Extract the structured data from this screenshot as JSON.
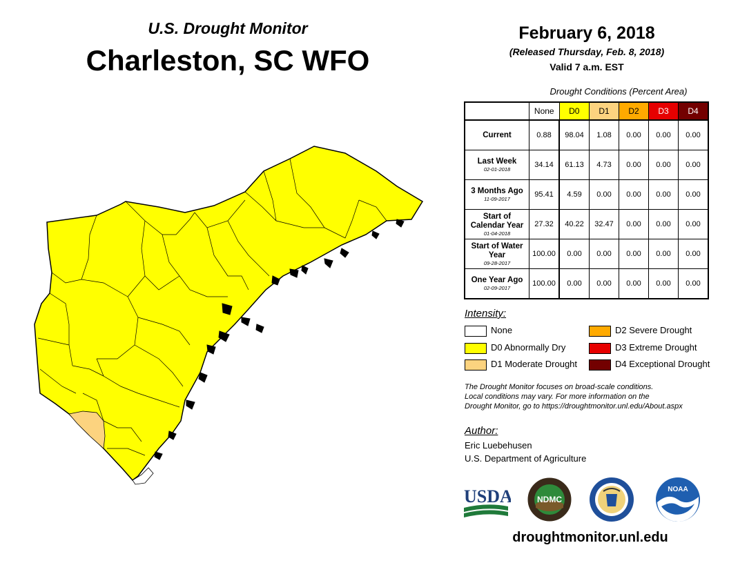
{
  "map": {
    "subtitle": "U.S. Drought Monitor",
    "title": "Charleston, SC WFO"
  },
  "header": {
    "date": "February 6, 2018",
    "released": "(Released Thursday, Feb. 8, 2018)",
    "valid": "Valid 7 a.m. EST"
  },
  "table": {
    "caption": "Drought Conditions (Percent Area)",
    "columns": [
      "None",
      "D0",
      "D1",
      "D2",
      "D3",
      "D4"
    ],
    "column_colors": [
      "#ffffff",
      "#ffff00",
      "#fcd37f",
      "#ffaa00",
      "#e60000",
      "#730000"
    ],
    "rows": [
      {
        "label": "Current",
        "date": "",
        "values": [
          "0.88",
          "98.04",
          "1.08",
          "0.00",
          "0.00",
          "0.00"
        ]
      },
      {
        "label": "Last Week",
        "date": "02-01-2018",
        "values": [
          "34.14",
          "61.13",
          "4.73",
          "0.00",
          "0.00",
          "0.00"
        ]
      },
      {
        "label": "3 Months Ago",
        "date": "11-09-2017",
        "values": [
          "95.41",
          "4.59",
          "0.00",
          "0.00",
          "0.00",
          "0.00"
        ]
      },
      {
        "label": "Start of Calendar Year",
        "date": "01-04-2018",
        "values": [
          "27.32",
          "40.22",
          "32.47",
          "0.00",
          "0.00",
          "0.00"
        ]
      },
      {
        "label": "Start of Water Year",
        "date": "09-28-2017",
        "values": [
          "100.00",
          "0.00",
          "0.00",
          "0.00",
          "0.00",
          "0.00"
        ]
      },
      {
        "label": "One Year Ago",
        "date": "02-09-2017",
        "values": [
          "100.00",
          "0.00",
          "0.00",
          "0.00",
          "0.00",
          "0.00"
        ]
      }
    ]
  },
  "legend": {
    "heading": "Intensity:",
    "items": [
      {
        "label": "None",
        "color": "#ffffff"
      },
      {
        "label": "D0 Abnormally Dry",
        "color": "#ffff00"
      },
      {
        "label": "D1 Moderate Drought",
        "color": "#fcd37f"
      },
      {
        "label": "D2 Severe Drought",
        "color": "#ffaa00"
      },
      {
        "label": "D3 Extreme Drought",
        "color": "#e60000"
      },
      {
        "label": "D4 Exceptional Drought",
        "color": "#730000"
      }
    ]
  },
  "note": {
    "line1": "The Drought Monitor focuses on broad-scale conditions.",
    "line2": "Local conditions may vary. For more information on the",
    "line3": "Drought Monitor, go to https://droughtmonitor.unl.edu/About.aspx"
  },
  "author": {
    "heading": "Author:",
    "name": "Eric Luebehusen",
    "org": "U.S. Department of Agriculture"
  },
  "logos": {
    "usda": "USDA",
    "ndmc": "NDMC",
    "noaa": "NOAA"
  },
  "website": "droughtmonitor.unl.edu"
}
